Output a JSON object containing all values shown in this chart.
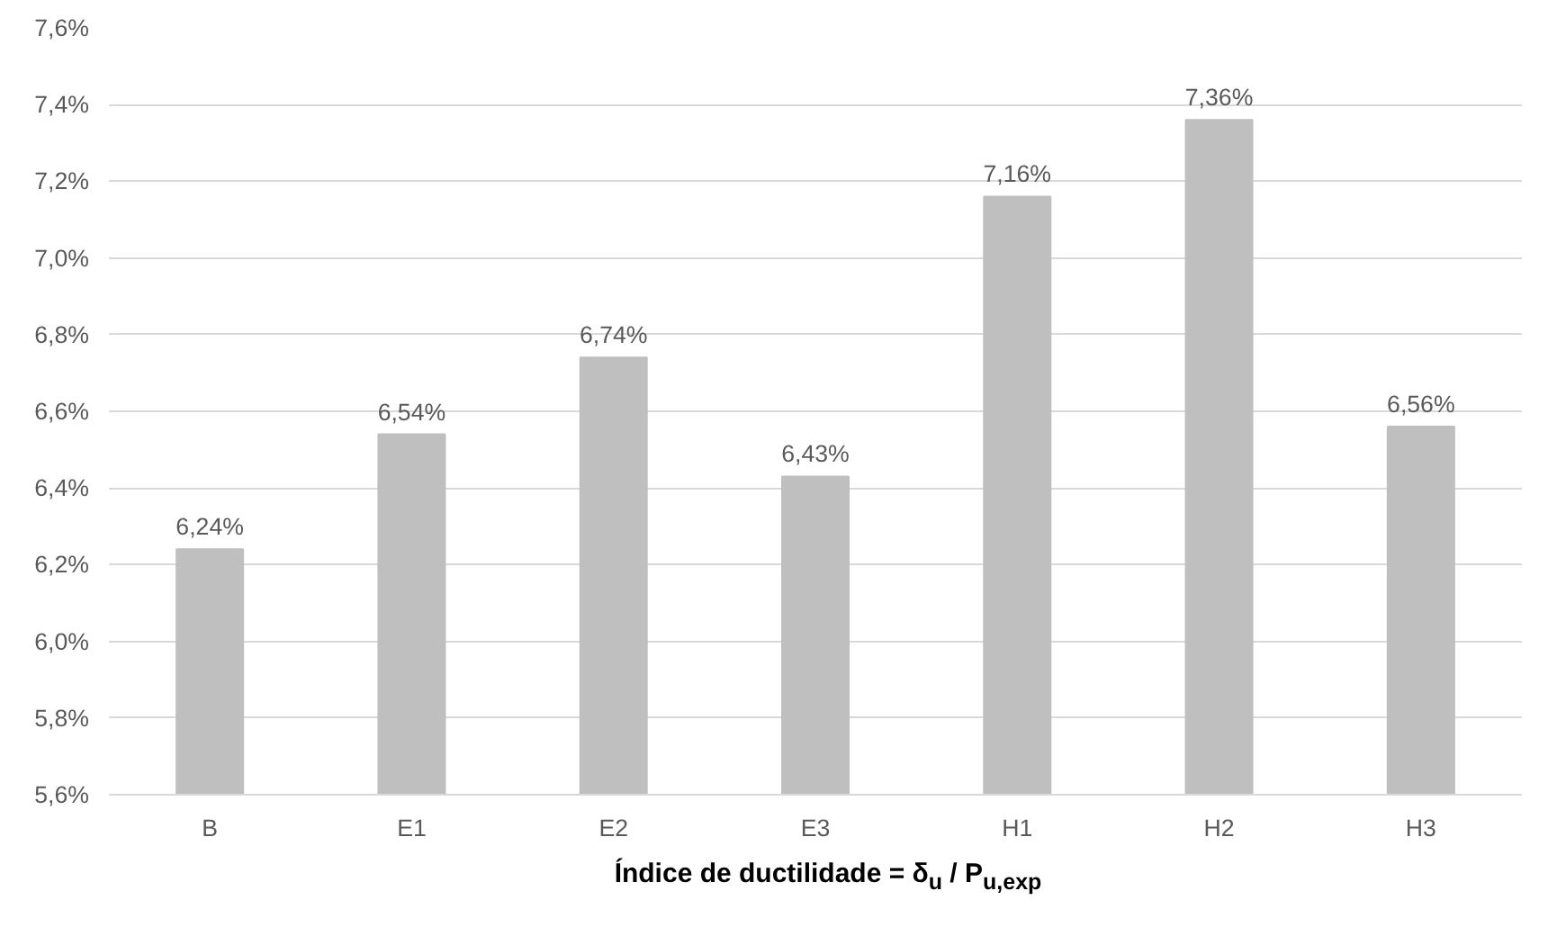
{
  "chart_data": {
    "type": "bar",
    "xlabel": "Índice de ductilidade = δ$_{u}$ / P$_{u,exp}$",
    "categories": [
      "B",
      "E1",
      "E2",
      "E3",
      "H1",
      "H2",
      "H3"
    ],
    "values": [
      6.24,
      6.54,
      6.74,
      6.43,
      7.16,
      7.36,
      6.56
    ],
    "value_labels": [
      "6,24%",
      "6,54%",
      "6,74%",
      "6,43%",
      "7,16%",
      "7,36%",
      "6,56%"
    ],
    "color": "#bfbfbf",
    "ylim": [
      5.6,
      7.6
    ],
    "yticks": [
      {
        "value": 5.6,
        "label": "5,6%"
      },
      {
        "value": 5.8,
        "label": "5,8%"
      },
      {
        "value": 6.0,
        "label": "6,0%"
      },
      {
        "value": 6.2,
        "label": "6,2%"
      },
      {
        "value": 6.4,
        "label": "6,4%"
      },
      {
        "value": 6.6,
        "label": "6,6%"
      },
      {
        "value": 6.8,
        "label": "6,8%"
      },
      {
        "value": 7.0,
        "label": "7,0%"
      },
      {
        "value": 7.2,
        "label": "7,2%"
      },
      {
        "value": 7.4,
        "label": "7,4%"
      },
      {
        "value": 7.6,
        "label": "7,6%"
      }
    ],
    "grid": "y"
  }
}
